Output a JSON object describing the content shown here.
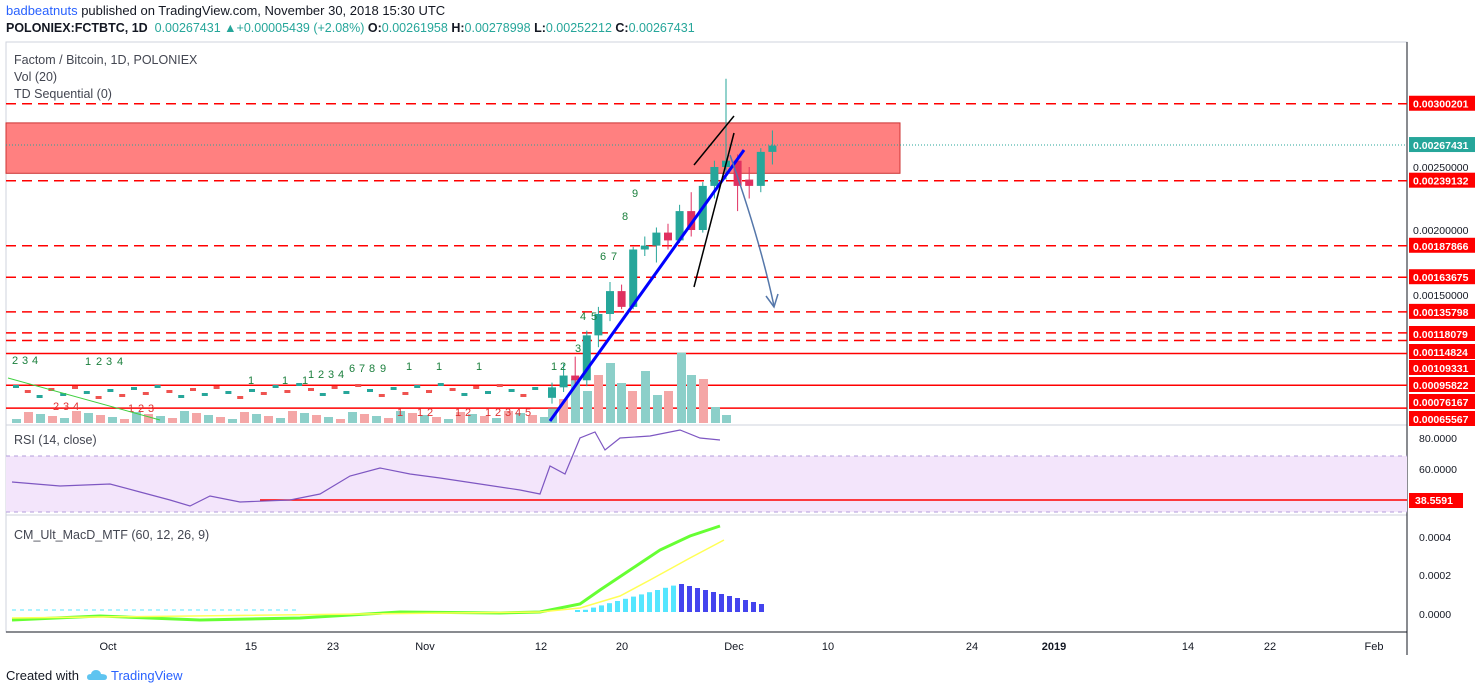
{
  "header": {
    "author": "badbeatnuts",
    "published_text": "published on TradingView.com, November 30, 2018 15:30 UTC",
    "symbol": "POLONIEX:FCTBTC, 1D",
    "last": "0.00267431",
    "change": "+0.00005439 (+2.08%)",
    "o_label": "O:",
    "o": "0.00261958",
    "h_label": "H:",
    "h": "0.00278998",
    "l_label": "L:",
    "l": "0.00252212",
    "c_label": "C:",
    "c": "0.00267431"
  },
  "legend": {
    "main_title": "Factom / Bitcoin, 1D, POLONIEX",
    "vol": "Vol (20)",
    "td": "TD Sequential (0)",
    "rsi": "RSI (14, close)",
    "macd": "CM_Ult_MacD_MTF (60, 12, 26, 9)"
  },
  "footer": {
    "created_with": "Created with",
    "brand": "TradingView"
  },
  "colors": {
    "up": "#26a69a",
    "down": "#ef5350",
    "zone": "#ff8080",
    "level": "#ff0000",
    "trend": "#0000ff",
    "rsi": "#7e57c2",
    "macd": "#66ff33",
    "signal": "#ffff55"
  },
  "chart_data": {
    "type": "candlestick",
    "ylim": [
      0.0006,
      0.0033
    ],
    "price_axis_labels": [
      "0.00300201",
      "0.00267431",
      "0.00250000",
      "0.00239132",
      "0.00200000",
      "0.00187866",
      "0.00163675",
      "0.00150000",
      "0.00135798",
      "0.00118079",
      "0.00114824",
      "0.00109331",
      "0.00095822",
      "0.00076167",
      "0.00065567"
    ],
    "x_tick_labels": [
      "Oct",
      "15",
      "23",
      "Nov",
      "12",
      "20",
      "Dec",
      "10",
      "24",
      "2019",
      "14",
      "22",
      "Feb"
    ],
    "dashed_levels": [
      0.00300201,
      0.00239132,
      0.00187866,
      0.00163675,
      0.00135798,
      0.00118079,
      0.00114824
    ],
    "solid_levels": [
      0.00109331,
      0.00095822,
      0.00076167
    ],
    "resistance_zone": [
      0.00245,
      0.00285
    ],
    "candles_recent": [
      {
        "date": "Nov 12",
        "o": 0.00085,
        "h": 0.00097,
        "l": 0.0008,
        "c": 0.00094
      },
      {
        "date": "Nov 13",
        "o": 0.00094,
        "h": 0.00105,
        "l": 0.0009,
        "c": 0.001
      },
      {
        "date": "Nov 14",
        "o": 0.001,
        "h": 0.00108,
        "l": 0.00096,
        "c": 0.00098
      },
      {
        "date": "Nov 15",
        "o": 0.00098,
        "h": 0.0012,
        "l": 0.00095,
        "c": 0.00117
      },
      {
        "date": "Nov 16",
        "o": 0.00117,
        "h": 0.0014,
        "l": 0.00112,
        "c": 0.00134
      },
      {
        "date": "Nov 17",
        "o": 0.00134,
        "h": 0.0016,
        "l": 0.00128,
        "c": 0.00153
      },
      {
        "date": "Nov 18",
        "o": 0.00153,
        "h": 0.00158,
        "l": 0.00138,
        "c": 0.0014
      },
      {
        "date": "Nov 19",
        "o": 0.0014,
        "h": 0.00187,
        "l": 0.00138,
        "c": 0.00185
      },
      {
        "date": "Nov 20",
        "o": 0.00185,
        "h": 0.00195,
        "l": 0.0018,
        "c": 0.00188
      },
      {
        "date": "Nov 21",
        "o": 0.00188,
        "h": 0.00202,
        "l": 0.00175,
        "c": 0.00198
      },
      {
        "date": "Nov 22",
        "o": 0.00198,
        "h": 0.00205,
        "l": 0.00185,
        "c": 0.00192
      },
      {
        "date": "Nov 23",
        "o": 0.00192,
        "h": 0.0022,
        "l": 0.0019,
        "c": 0.00215
      },
      {
        "date": "Nov 24",
        "o": 0.00215,
        "h": 0.0023,
        "l": 0.00195,
        "c": 0.002
      },
      {
        "date": "Nov 25",
        "o": 0.002,
        "h": 0.00238,
        "l": 0.00198,
        "c": 0.00235
      },
      {
        "date": "Nov 26",
        "o": 0.00235,
        "h": 0.00255,
        "l": 0.00225,
        "c": 0.0025
      },
      {
        "date": "Nov 27",
        "o": 0.0025,
        "h": 0.0032,
        "l": 0.0024,
        "c": 0.00255
      },
      {
        "date": "Nov 28",
        "o": 0.00255,
        "h": 0.0026,
        "l": 0.00215,
        "c": 0.00235
      },
      {
        "date": "Nov 29",
        "o": 0.0024,
        "h": 0.0025,
        "l": 0.00225,
        "c": 0.00235
      },
      {
        "date": "Nov 30",
        "o": 0.00235,
        "h": 0.00265,
        "l": 0.0023,
        "c": 0.00262
      },
      {
        "date": "Dec 1",
        "o": 0.00262,
        "h": 0.00279,
        "l": 0.00252,
        "c": 0.00267
      }
    ],
    "rsi": {
      "level_label": "38.5591",
      "axis_labels": [
        "80.0000",
        "60.0000"
      ],
      "band": [
        30,
        70
      ]
    },
    "macd": {
      "axis_labels": [
        "0.0004",
        "0.0002",
        "0.0000"
      ]
    }
  }
}
